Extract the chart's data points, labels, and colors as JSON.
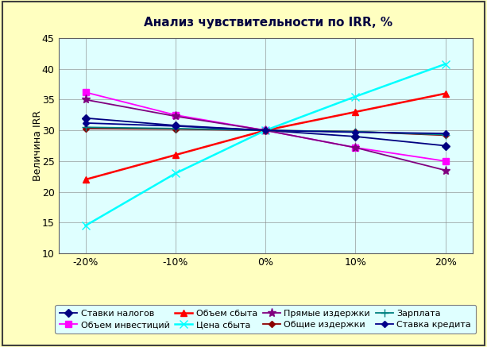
{
  "title": "Анализ чувствительности по IRR, %",
  "ylabel": "Величина IRR",
  "x_ticks": [
    -20,
    -10,
    0,
    10,
    20
  ],
  "x_tick_labels": [
    "-20%",
    "-10%",
    "0%",
    "10%",
    "20%"
  ],
  "ylim": [
    10,
    45
  ],
  "y_ticks": [
    10,
    15,
    20,
    25,
    30,
    35,
    40,
    45
  ],
  "fig_bg_color": "#FFFFC0",
  "plot_bg_color": "#DFFFFF",
  "legend_bg_color": "#DFFFFF",
  "series": [
    {
      "name": "Ставки налогов",
      "color": "#000080",
      "marker": "D",
      "markersize": 5,
      "linewidth": 1.3,
      "values": [
        32.0,
        30.8,
        30.0,
        29.0,
        27.5
      ]
    },
    {
      "name": "Объем инвестиций",
      "color": "#FF00FF",
      "marker": "s",
      "markersize": 6,
      "linewidth": 1.3,
      "values": [
        36.2,
        32.5,
        30.0,
        27.2,
        25.0
      ]
    },
    {
      "name": "Объем сбыта",
      "color": "#FF0000",
      "marker": "^",
      "markersize": 6,
      "linewidth": 1.8,
      "values": [
        22.0,
        26.0,
        30.0,
        33.0,
        36.0
      ]
    },
    {
      "name": "Цена сбыта",
      "color": "#00FFFF",
      "marker": "x",
      "markersize": 7,
      "linewidth": 1.8,
      "values": [
        14.5,
        23.0,
        30.0,
        35.5,
        40.8
      ]
    },
    {
      "name": "Прямые издержки",
      "color": "#800080",
      "marker": "*",
      "markersize": 8,
      "linewidth": 1.3,
      "values": [
        35.0,
        32.3,
        30.0,
        27.2,
        23.5
      ]
    },
    {
      "name": "Общие издержки",
      "color": "#8B0000",
      "marker": "D",
      "markersize": 4,
      "linewidth": 1.3,
      "values": [
        30.3,
        30.2,
        30.0,
        29.8,
        29.2
      ]
    },
    {
      "name": "Зарплата",
      "color": "#008080",
      "marker": "+",
      "markersize": 7,
      "linewidth": 1.3,
      "values": [
        30.5,
        30.3,
        30.0,
        29.8,
        29.3
      ]
    },
    {
      "name": "Ставка кредита",
      "color": "#00008B",
      "marker": "D",
      "markersize": 4,
      "linewidth": 1.3,
      "values": [
        31.2,
        30.7,
        30.0,
        29.7,
        29.5
      ]
    }
  ],
  "legend_order": [
    0,
    1,
    2,
    3,
    4,
    5,
    6,
    7
  ]
}
